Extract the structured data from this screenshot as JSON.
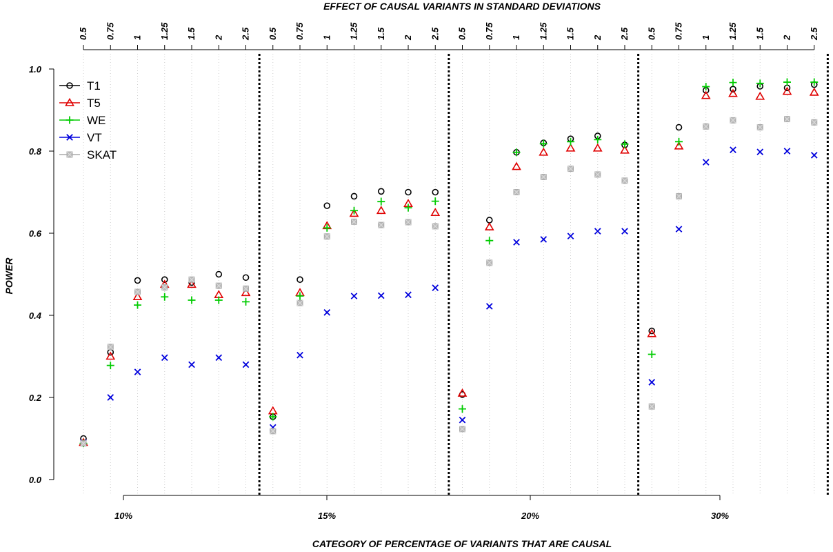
{
  "chart_data": {
    "type": "scatter",
    "top_axis_title": "EFFECT OF CAUSAL VARIANTS IN STANDARD DEVIATIONS",
    "xlabel": "CATEGORY OF PERCENTAGE OF VARIANTS THAT ARE CAUSAL",
    "ylabel": "POWER",
    "ylim": [
      0.0,
      1.0
    ],
    "y_ticks": [
      "0.0",
      "0.2",
      "0.4",
      "0.6",
      "0.8",
      "1.0"
    ],
    "groups": [
      "10%",
      "15%",
      "20%",
      "30%"
    ],
    "effect_sizes": [
      "0.5",
      "0.75",
      "1",
      "1.25",
      "1.5",
      "2",
      "2.5"
    ],
    "grid": "vertical dotted",
    "legend_position": "top-left",
    "series": [
      {
        "name": "T1",
        "color": "#000000",
        "marker": "circle",
        "values": [
          [
            0.1,
            0.31,
            0.485,
            0.487,
            0.48,
            0.5,
            0.492
          ],
          [
            0.153,
            0.487,
            0.667,
            0.69,
            0.702,
            0.7,
            0.7
          ],
          [
            0.207,
            0.632,
            0.797,
            0.82,
            0.83,
            0.837,
            0.815
          ],
          [
            0.362,
            0.858,
            0.948,
            0.951,
            0.958,
            0.954,
            0.962
          ]
        ]
      },
      {
        "name": "T5",
        "color": "#e00000",
        "marker": "triangle",
        "values": [
          [
            0.09,
            0.3,
            0.445,
            0.475,
            0.475,
            0.45,
            0.455
          ],
          [
            0.167,
            0.455,
            0.618,
            0.648,
            0.655,
            0.672,
            0.65
          ],
          [
            0.21,
            0.615,
            0.762,
            0.797,
            0.807,
            0.807,
            0.802
          ],
          [
            0.355,
            0.812,
            0.935,
            0.94,
            0.933,
            0.945,
            0.943
          ]
        ]
      },
      {
        "name": "WE",
        "color": "#00cc00",
        "marker": "plus",
        "values": [
          [
            0.088,
            0.278,
            0.425,
            0.445,
            0.437,
            0.437,
            0.433
          ],
          [
            0.153,
            0.447,
            0.613,
            0.655,
            0.677,
            0.662,
            0.678
          ],
          [
            0.172,
            0.582,
            0.797,
            0.818,
            0.823,
            0.828,
            0.817
          ],
          [
            0.305,
            0.823,
            0.957,
            0.967,
            0.965,
            0.968,
            0.968
          ]
        ]
      },
      {
        "name": "VT",
        "color": "#0000dd",
        "marker": "cross",
        "values": [
          [
            0.09,
            0.2,
            0.262,
            0.297,
            0.28,
            0.297,
            0.28
          ],
          [
            0.127,
            0.303,
            0.407,
            0.447,
            0.448,
            0.45,
            0.467
          ],
          [
            0.145,
            0.422,
            0.578,
            0.585,
            0.593,
            0.605,
            0.605
          ],
          [
            0.237,
            0.61,
            0.773,
            0.803,
            0.798,
            0.8,
            0.79
          ]
        ]
      },
      {
        "name": "SKAT",
        "color": "#aaaaaa",
        "marker": "square",
        "values": [
          [
            0.088,
            0.323,
            0.457,
            0.468,
            0.487,
            0.472,
            0.465
          ],
          [
            0.118,
            0.43,
            0.592,
            0.628,
            0.62,
            0.627,
            0.617
          ],
          [
            0.123,
            0.528,
            0.7,
            0.737,
            0.757,
            0.743,
            0.728
          ],
          [
            0.178,
            0.69,
            0.86,
            0.875,
            0.858,
            0.878,
            0.87
          ]
        ]
      }
    ]
  }
}
